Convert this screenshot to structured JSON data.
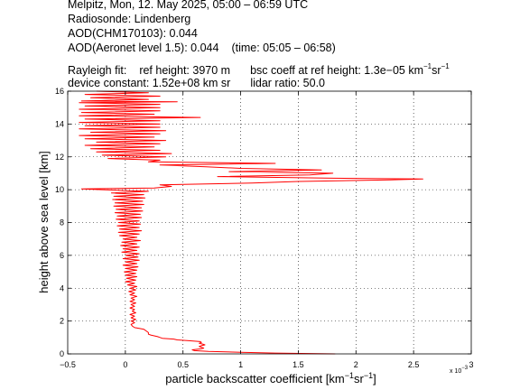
{
  "header": {
    "line1": "Melpitz, Mon, 12. May 2025, 05:00 – 06:59 UTC",
    "line2": "Radiosonde: Lindenberg",
    "line3": "AOD(CHM170103): 0.044",
    "line4_aod": "AOD(Aeronet level 1.5): 0.044",
    "line4_time": "(time: 05:05 – 06:58)",
    "line5_rayleigh": "Rayleigh fit:",
    "line5_refheight": "ref height: 3970 m",
    "line5_bsc_prefix": "bsc coeff at ref height: 1.3e−05 km",
    "line5_bsc_sup1": "−1",
    "line5_bsc_mid": "sr",
    "line5_bsc_sup2": "−1",
    "line6_devconst": "device constant: 1.52e+08 km sr",
    "line6_lidar": "lidar ratio: 50.0"
  },
  "chart_data": {
    "type": "line",
    "xlabel_prefix": "particle backscatter coefficient [km",
    "xlabel_sup1": "−1",
    "xlabel_mid": "sr",
    "xlabel_sup2": "−1",
    "xlabel_suffix": "]",
    "ylabel": "height above sea level [km]",
    "x_multiplier": "x 10",
    "x_multiplier_exp": "−3",
    "xlim": [
      -0.5,
      3
    ],
    "ylim": [
      0,
      16
    ],
    "xticks": [
      "−0.5",
      "0",
      "0.5",
      "1",
      "1.5",
      "2",
      "2.5",
      "3"
    ],
    "yticks": [
      "0",
      "2",
      "4",
      "6",
      "8",
      "10",
      "12",
      "14",
      "16"
    ],
    "grid": true,
    "line_color": "#ff0000",
    "series": [
      {
        "values": [
          [
            1.82,
            0.0
          ],
          [
            1.6,
            0.02
          ],
          [
            1.3,
            0.05
          ],
          [
            1.0,
            0.1
          ],
          [
            0.72,
            0.15
          ],
          [
            0.6,
            0.2
          ],
          [
            0.58,
            0.25
          ],
          [
            0.65,
            0.3
          ],
          [
            0.68,
            0.35
          ],
          [
            0.66,
            0.4
          ],
          [
            0.64,
            0.45
          ],
          [
            0.66,
            0.5
          ],
          [
            0.69,
            0.55
          ],
          [
            0.67,
            0.6
          ],
          [
            0.64,
            0.65
          ],
          [
            0.66,
            0.7
          ],
          [
            0.65,
            0.75
          ],
          [
            0.55,
            0.8
          ],
          [
            0.45,
            0.85
          ],
          [
            0.42,
            0.9
          ],
          [
            0.32,
            0.95
          ],
          [
            0.3,
            1.0
          ],
          [
            0.28,
            1.05
          ],
          [
            0.25,
            1.1
          ],
          [
            0.22,
            1.15
          ],
          [
            0.2,
            1.2
          ],
          [
            0.2,
            1.3
          ],
          [
            0.18,
            1.4
          ],
          [
            0.16,
            1.5
          ],
          [
            0.12,
            1.55
          ],
          [
            0.08,
            1.6
          ],
          [
            0.06,
            1.7
          ],
          [
            0.05,
            1.8
          ],
          [
            0.08,
            1.9
          ],
          [
            0.05,
            2.0
          ],
          [
            0.09,
            2.1
          ],
          [
            0.05,
            2.2
          ],
          [
            0.08,
            2.3
          ],
          [
            0.04,
            2.4
          ],
          [
            0.09,
            2.5
          ],
          [
            0.06,
            2.6
          ],
          [
            0.08,
            2.7
          ],
          [
            0.04,
            2.8
          ],
          [
            0.08,
            2.9
          ],
          [
            0.05,
            3.0
          ],
          [
            0.09,
            3.1
          ],
          [
            0.04,
            3.2
          ],
          [
            0.08,
            3.3
          ],
          [
            0.05,
            3.4
          ],
          [
            0.1,
            3.5
          ],
          [
            0.04,
            3.6
          ],
          [
            0.08,
            3.7
          ],
          [
            0.03,
            3.8
          ],
          [
            0.09,
            3.9
          ],
          [
            0.04,
            4.0
          ],
          [
            0.1,
            4.1
          ],
          [
            0.02,
            4.2
          ],
          [
            0.08,
            4.3
          ],
          [
            0.0,
            4.4
          ],
          [
            0.09,
            4.5
          ],
          [
            0.01,
            4.6
          ],
          [
            0.1,
            4.7
          ],
          [
            0.0,
            4.8
          ],
          [
            0.09,
            4.9
          ],
          [
            -0.01,
            5.0
          ],
          [
            0.1,
            5.1
          ],
          [
            0.0,
            5.2
          ],
          [
            0.11,
            5.3
          ],
          [
            -0.02,
            5.4
          ],
          [
            0.1,
            5.5
          ],
          [
            0.0,
            5.6
          ],
          [
            0.12,
            5.7
          ],
          [
            -0.02,
            5.8
          ],
          [
            0.11,
            5.9
          ],
          [
            0.0,
            6.0
          ],
          [
            0.12,
            6.1
          ],
          [
            -0.03,
            6.2
          ],
          [
            0.1,
            6.3
          ],
          [
            -0.02,
            6.4
          ],
          [
            0.12,
            6.5
          ],
          [
            -0.04,
            6.6
          ],
          [
            0.1,
            6.7
          ],
          [
            -0.03,
            6.8
          ],
          [
            0.13,
            6.9
          ],
          [
            -0.02,
            7.0
          ],
          [
            0.1,
            7.1
          ],
          [
            -0.05,
            7.2
          ],
          [
            0.12,
            7.3
          ],
          [
            -0.06,
            7.4
          ],
          [
            0.14,
            7.5
          ],
          [
            -0.05,
            7.6
          ],
          [
            0.12,
            7.7
          ],
          [
            -0.07,
            7.8
          ],
          [
            0.13,
            7.9
          ],
          [
            -0.06,
            8.0
          ],
          [
            0.12,
            8.1
          ],
          [
            -0.08,
            8.2
          ],
          [
            0.14,
            8.3
          ],
          [
            -0.07,
            8.4
          ],
          [
            0.13,
            8.5
          ],
          [
            -0.09,
            8.6
          ],
          [
            0.15,
            8.7
          ],
          [
            -0.08,
            8.8
          ],
          [
            0.14,
            8.9
          ],
          [
            -0.1,
            9.0
          ],
          [
            0.16,
            9.1
          ],
          [
            -0.09,
            9.2
          ],
          [
            0.15,
            9.3
          ],
          [
            -0.11,
            9.4
          ],
          [
            0.17,
            9.5
          ],
          [
            -0.1,
            9.6
          ],
          [
            0.16,
            9.7
          ],
          [
            -0.12,
            9.8
          ],
          [
            0.2,
            9.9
          ],
          [
            -0.2,
            10.0
          ],
          [
            -0.38,
            10.05
          ],
          [
            0.25,
            10.1
          ],
          [
            0.4,
            10.2
          ],
          [
            0.3,
            10.3
          ],
          [
            1.1,
            10.4
          ],
          [
            1.5,
            10.5
          ],
          [
            2.3,
            10.6
          ],
          [
            2.58,
            10.65
          ],
          [
            1.8,
            10.7
          ],
          [
            0.8,
            10.8
          ],
          [
            1.6,
            10.9
          ],
          [
            1.8,
            11.0
          ],
          [
            0.9,
            11.1
          ],
          [
            1.7,
            11.2
          ],
          [
            1.0,
            11.3
          ],
          [
            0.7,
            11.4
          ],
          [
            0.3,
            11.5
          ],
          [
            1.3,
            11.6
          ],
          [
            0.2,
            11.7
          ],
          [
            0.3,
            11.8
          ],
          [
            -0.15,
            11.9
          ],
          [
            0.35,
            12.0
          ],
          [
            -0.2,
            12.1
          ],
          [
            0.4,
            12.2
          ],
          [
            -0.25,
            12.3
          ],
          [
            0.3,
            12.4
          ],
          [
            -0.3,
            12.5
          ],
          [
            0.25,
            12.6
          ],
          [
            -0.35,
            12.7
          ],
          [
            0.3,
            12.8
          ],
          [
            -0.25,
            12.9
          ],
          [
            0.35,
            13.0
          ],
          [
            -0.35,
            13.1
          ],
          [
            0.25,
            13.2
          ],
          [
            -0.4,
            13.3
          ],
          [
            0.3,
            13.4
          ],
          [
            -0.3,
            13.5
          ],
          [
            0.35,
            13.6
          ],
          [
            -0.4,
            13.7
          ],
          [
            0.3,
            13.8
          ],
          [
            -0.35,
            13.9
          ],
          [
            0.3,
            14.0
          ],
          [
            -0.4,
            14.1
          ],
          [
            0.3,
            14.2
          ],
          [
            -0.35,
            14.3
          ],
          [
            0.65,
            14.4
          ],
          [
            -0.4,
            14.5
          ],
          [
            0.25,
            14.6
          ],
          [
            -0.38,
            14.7
          ],
          [
            0.3,
            14.8
          ],
          [
            -0.4,
            14.9
          ],
          [
            0.3,
            15.0
          ],
          [
            -0.35,
            15.1
          ],
          [
            0.3,
            15.2
          ],
          [
            -0.4,
            15.3
          ],
          [
            0.45,
            15.35
          ],
          [
            -0.38,
            15.4
          ],
          [
            0.2,
            15.5
          ],
          [
            -0.3,
            15.6
          ],
          [
            0.3,
            15.7
          ],
          [
            -0.35,
            15.8
          ],
          [
            0.2,
            15.9
          ],
          [
            -0.25,
            16.0
          ]
        ]
      }
    ]
  }
}
